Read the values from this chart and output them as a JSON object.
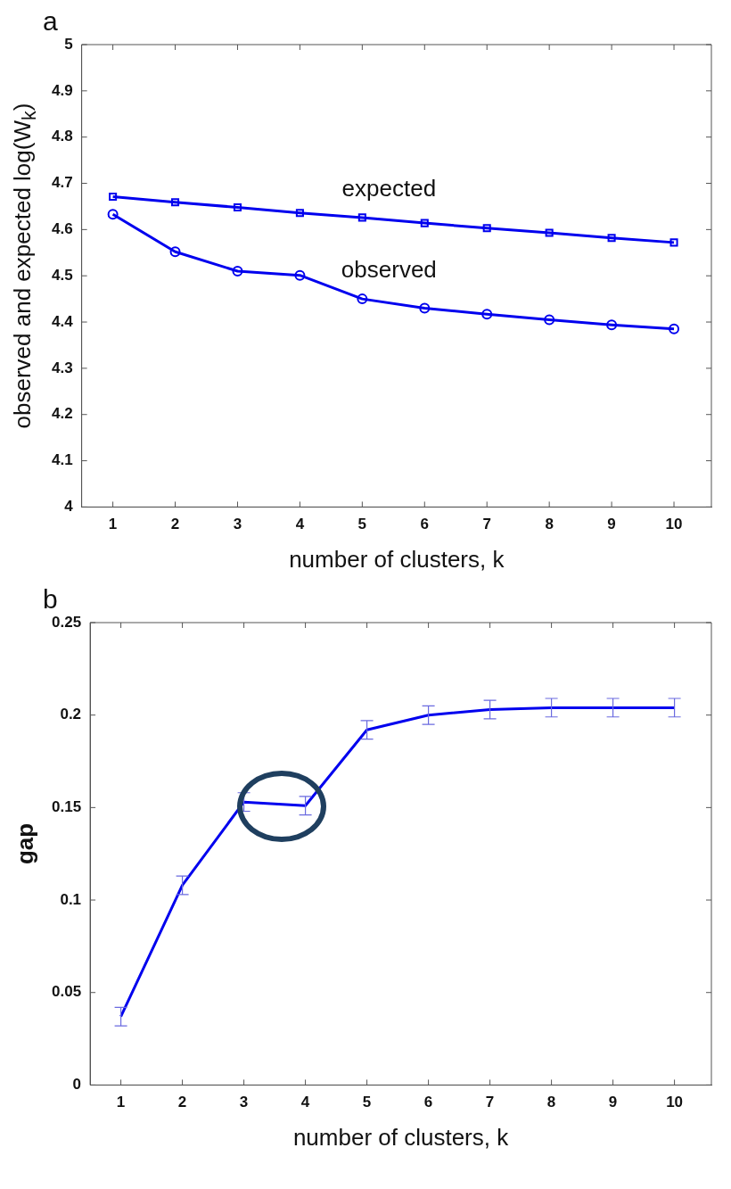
{
  "chart_data": [
    {
      "type": "line",
      "title": "a",
      "xlabel": "number of clusters, k",
      "ylabel": "observed and expected log(W$_{k}$)",
      "x": [
        1,
        2,
        3,
        4,
        5,
        6,
        7,
        8,
        9,
        10
      ],
      "xlim": [
        0.5,
        10.6
      ],
      "xticks": [
        1,
        2,
        3,
        4,
        5,
        6,
        7,
        8,
        9,
        10
      ],
      "ylim": [
        4,
        5
      ],
      "yticks": [
        4,
        4.1,
        4.2,
        4.3,
        4.4,
        4.5,
        4.6,
        4.7,
        4.8,
        4.9,
        5
      ],
      "grid": false,
      "legend": false,
      "series": [
        {
          "name": "expected",
          "color": "#0000ee",
          "marker": "square",
          "values": [
            4.671,
            4.659,
            4.648,
            4.636,
            4.626,
            4.614,
            4.603,
            4.593,
            4.582,
            4.572
          ]
        },
        {
          "name": "observed",
          "color": "#0000ee",
          "marker": "circle",
          "values": [
            4.633,
            4.552,
            4.51,
            4.501,
            4.45,
            4.43,
            4.417,
            4.405,
            4.394,
            4.385
          ]
        }
      ]
    },
    {
      "type": "line",
      "title": "b",
      "xlabel": "number of clusters, k",
      "ylabel": "gap",
      "x": [
        1,
        2,
        3,
        4,
        5,
        6,
        7,
        8,
        9,
        10
      ],
      "xlim": [
        0.5,
        10.6
      ],
      "xticks": [
        1,
        2,
        3,
        4,
        5,
        6,
        7,
        8,
        9,
        10
      ],
      "ylim": [
        0,
        0.25
      ],
      "yticks": [
        0,
        0.05,
        0.1,
        0.15,
        0.2,
        0.25
      ],
      "grid": false,
      "legend": false,
      "marker": "none",
      "series": [
        {
          "color": "#0000ee",
          "values": [
            0.037,
            0.108,
            0.153,
            0.151,
            0.192,
            0.2,
            0.203,
            0.204,
            0.204,
            0.204
          ],
          "errors": [
            0.005,
            0.005,
            0.005,
            0.005,
            0.005,
            0.005,
            0.005,
            0.005,
            0.005,
            0.005
          ]
        }
      ]
    }
  ]
}
